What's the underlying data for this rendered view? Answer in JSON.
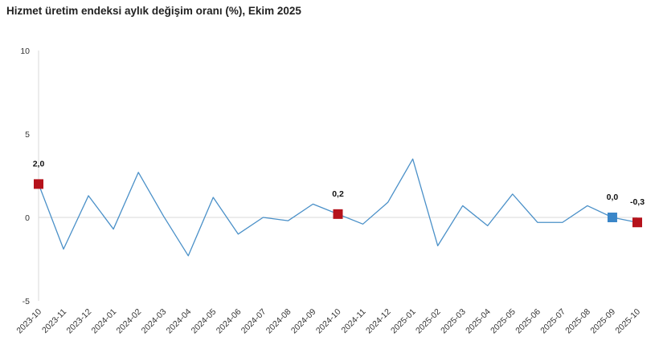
{
  "chart_data": {
    "type": "line",
    "title": "Hizmet üretim endeksi aylık değişim oranı (%), Ekim 2025",
    "xlabel": "",
    "ylabel": "",
    "ylim": [
      -5,
      10
    ],
    "yticks": [
      -5,
      0,
      5,
      10
    ],
    "grid": false,
    "categories": [
      "2023-10",
      "2023-11",
      "2023-12",
      "2024-01",
      "2024-02",
      "2024-03",
      "2024-04",
      "2024-05",
      "2024-06",
      "2024-07",
      "2024-08",
      "2024-09",
      "2024-10",
      "2024-11",
      "2024-12",
      "2025-01",
      "2025-02",
      "2025-03",
      "2025-04",
      "2025-05",
      "2025-06",
      "2025-07",
      "2025-08",
      "2025-09",
      "2025-10"
    ],
    "series": [
      {
        "values": [
          2.0,
          -1.9,
          1.3,
          -0.7,
          2.7,
          0.1,
          -2.3,
          1.2,
          -1.0,
          0.0,
          -0.2,
          0.8,
          0.2,
          -0.4,
          0.9,
          3.5,
          -1.7,
          0.7,
          -0.5,
          1.4,
          -0.3,
          -0.3,
          0.7,
          0.0,
          -0.3
        ],
        "color": "#4a90c8"
      }
    ],
    "highlights": [
      {
        "index": 0,
        "label": "2,0",
        "color": "#b5121b"
      },
      {
        "index": 12,
        "label": "0,2",
        "color": "#b5121b"
      },
      {
        "index": 23,
        "label": "0,0",
        "color": "#3a86c8"
      },
      {
        "index": 24,
        "label": "-0,3",
        "color": "#b5121b"
      }
    ],
    "colors": {
      "axis": "#d9d9d9",
      "line": "#4a90c8"
    }
  }
}
